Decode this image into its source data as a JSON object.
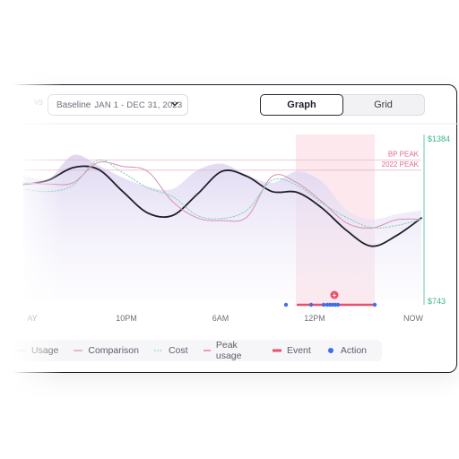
{
  "toolbar": {
    "vs_label": "vs",
    "baseline_label": "Baseline",
    "baseline_range": "JAN 1 - DEC 31, 2023",
    "view_tabs": [
      {
        "label": "Graph",
        "active": true
      },
      {
        "label": "Grid",
        "active": false
      }
    ]
  },
  "chart_data": {
    "type": "line",
    "x_ticks": [
      "AY",
      "10PM",
      "6AM",
      "12PM",
      "NOW"
    ],
    "y_ticks": [
      "$1384",
      "$743"
    ],
    "ylim": [
      743,
      1384
    ],
    "reference_lines": [
      {
        "label": "BP PEAK",
        "value": 1300
      },
      {
        "label": "2022 PEAK",
        "value": 1260
      }
    ],
    "highlight_region_label": "",
    "series": [
      {
        "name": "Usage",
        "style": "solid",
        "color": "#1f1f2b",
        "values": [
          1203,
          1220,
          1270,
          1264,
          1175,
          1090,
          1080,
          1165,
          1256,
          1235,
          1175,
          1172,
          1110,
          1020,
          958,
          1000,
          1070
        ]
      },
      {
        "name": "Comparison",
        "style": "solid",
        "color": "#d98fb6",
        "values": [
          1210,
          1205,
          1210,
          1290,
          1275,
          1255,
          1135,
          1070,
          1060,
          1075,
          1235,
          1210,
          1135,
          1050,
          1030,
          1063,
          1065
        ]
      },
      {
        "name": "Cost",
        "style": "dotted",
        "color": "#7fd1b9",
        "values": [
          1185,
          1175,
          1200,
          1300,
          1250,
          1190,
          1155,
          1080,
          1068,
          1102,
          1220,
          1200,
          1130,
          1072,
          1032,
          1040,
          1065
        ]
      },
      {
        "name": "Peak usage",
        "style": "area",
        "color": "#e8e2f5",
        "values": [
          1240,
          1225,
          1320,
          1280,
          1230,
          1195,
          1185,
          1260,
          1285,
          1240,
          1210,
          1255,
          1215,
          1100,
          1065,
          1085,
          1100
        ]
      }
    ],
    "events": {
      "name": "Event",
      "color": "#e8506e"
    },
    "actions": {
      "name": "Action",
      "color": "#3f6fe8",
      "count": 9
    },
    "event_badge": "+",
    "legend_position": "bottom"
  },
  "legend": [
    {
      "name": "Usage",
      "kind": "usage",
      "color": "#b9b9c3"
    },
    {
      "name": "Comparison",
      "kind": "comparison",
      "color": "#d98fb6"
    },
    {
      "name": "Cost",
      "kind": "cost",
      "color": "#7fd1b9"
    },
    {
      "name": "Peak usage",
      "kind": "peak",
      "color": "#e55c8a"
    },
    {
      "name": "Event",
      "kind": "event",
      "color": "#e8506e"
    },
    {
      "name": "Action",
      "kind": "action",
      "color": "#3f6fe8"
    }
  ]
}
